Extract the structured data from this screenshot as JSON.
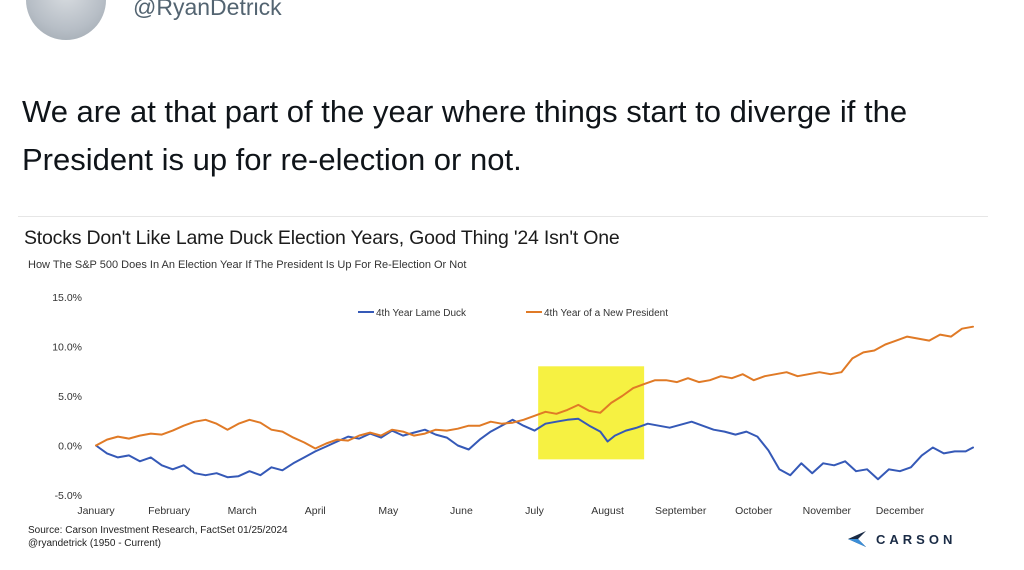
{
  "tweet": {
    "handle": "@RyanDetrick",
    "text": "We are at that part of the year where things start to diverge if the President is up for re-election or not."
  },
  "chart_data": {
    "type": "line",
    "title": "Stocks Don't Like Lame Duck Election Years, Good Thing '24 Isn't One",
    "subtitle": "How The S&P 500 Does In An Election Year If The President Is Up For Re-Election Or Not",
    "xlabel": "",
    "ylabel": "",
    "y_ticks": [
      "15.0%",
      "10.0%",
      "5.0%",
      "0.0%",
      "-5.0%"
    ],
    "ylim": [
      -5,
      15
    ],
    "xlim": [
      0,
      12
    ],
    "x_ticks": [
      {
        "label": "January",
        "pos": 0
      },
      {
        "label": "February",
        "pos": 1
      },
      {
        "label": "March",
        "pos": 2
      },
      {
        "label": "April",
        "pos": 3
      },
      {
        "label": "May",
        "pos": 4
      },
      {
        "label": "June",
        "pos": 5
      },
      {
        "label": "July",
        "pos": 6
      },
      {
        "label": "August",
        "pos": 7
      },
      {
        "label": "September",
        "pos": 8
      },
      {
        "label": "October",
        "pos": 9
      },
      {
        "label": "November",
        "pos": 10
      },
      {
        "label": "December",
        "pos": 11
      }
    ],
    "legend_position": "top",
    "highlight": {
      "x_start": 6.05,
      "x_end": 7.5,
      "y_start": -1.4,
      "y_end": 8.0,
      "color": "#f5ef2e"
    },
    "series": [
      {
        "name": "4th Year Lame Duck",
        "color": "#3559b7",
        "points": [
          [
            0,
            0
          ],
          [
            0.15,
            -0.8
          ],
          [
            0.3,
            -1.2
          ],
          [
            0.45,
            -1.0
          ],
          [
            0.6,
            -1.6
          ],
          [
            0.75,
            -1.2
          ],
          [
            0.9,
            -2.0
          ],
          [
            1.05,
            -2.4
          ],
          [
            1.2,
            -2.0
          ],
          [
            1.35,
            -2.8
          ],
          [
            1.5,
            -3.0
          ],
          [
            1.65,
            -2.8
          ],
          [
            1.8,
            -3.2
          ],
          [
            1.95,
            -3.1
          ],
          [
            2.1,
            -2.6
          ],
          [
            2.25,
            -3.0
          ],
          [
            2.4,
            -2.2
          ],
          [
            2.55,
            -2.5
          ],
          [
            2.7,
            -1.8
          ],
          [
            2.85,
            -1.2
          ],
          [
            3.0,
            -0.6
          ],
          [
            3.15,
            -0.1
          ],
          [
            3.3,
            0.4
          ],
          [
            3.45,
            0.9
          ],
          [
            3.6,
            0.7
          ],
          [
            3.75,
            1.2
          ],
          [
            3.9,
            0.8
          ],
          [
            4.05,
            1.5
          ],
          [
            4.2,
            1.0
          ],
          [
            4.35,
            1.3
          ],
          [
            4.5,
            1.6
          ],
          [
            4.65,
            1.1
          ],
          [
            4.8,
            0.8
          ],
          [
            4.95,
            0.0
          ],
          [
            5.1,
            -0.4
          ],
          [
            5.25,
            0.6
          ],
          [
            5.4,
            1.4
          ],
          [
            5.55,
            2.0
          ],
          [
            5.7,
            2.6
          ],
          [
            5.85,
            2.0
          ],
          [
            6.0,
            1.5
          ],
          [
            6.15,
            2.2
          ],
          [
            6.3,
            2.4
          ],
          [
            6.45,
            2.6
          ],
          [
            6.6,
            2.7
          ],
          [
            6.75,
            2.0
          ],
          [
            6.9,
            1.4
          ],
          [
            7.0,
            0.4
          ],
          [
            7.1,
            1.0
          ],
          [
            7.25,
            1.5
          ],
          [
            7.4,
            1.8
          ],
          [
            7.55,
            2.2
          ],
          [
            7.7,
            2.0
          ],
          [
            7.85,
            1.8
          ],
          [
            8.0,
            2.1
          ],
          [
            8.15,
            2.4
          ],
          [
            8.3,
            2.0
          ],
          [
            8.45,
            1.6
          ],
          [
            8.6,
            1.4
          ],
          [
            8.75,
            1.1
          ],
          [
            8.9,
            1.4
          ],
          [
            9.05,
            0.9
          ],
          [
            9.2,
            -0.5
          ],
          [
            9.35,
            -2.4
          ],
          [
            9.5,
            -3.0
          ],
          [
            9.65,
            -1.8
          ],
          [
            9.8,
            -2.8
          ],
          [
            9.95,
            -1.8
          ],
          [
            10.1,
            -2.0
          ],
          [
            10.25,
            -1.6
          ],
          [
            10.4,
            -2.6
          ],
          [
            10.55,
            -2.4
          ],
          [
            10.7,
            -3.4
          ],
          [
            10.85,
            -2.4
          ],
          [
            11.0,
            -2.6
          ],
          [
            11.15,
            -2.2
          ],
          [
            11.3,
            -1.0
          ],
          [
            11.45,
            -0.2
          ],
          [
            11.6,
            -0.8
          ],
          [
            11.75,
            -0.6
          ],
          [
            11.9,
            -0.6
          ],
          [
            12.0,
            -0.2
          ]
        ]
      },
      {
        "name": "4th Year of a New President",
        "color": "#e07a26",
        "points": [
          [
            0,
            0
          ],
          [
            0.15,
            0.6
          ],
          [
            0.3,
            0.9
          ],
          [
            0.45,
            0.7
          ],
          [
            0.6,
            1.0
          ],
          [
            0.75,
            1.2
          ],
          [
            0.9,
            1.1
          ],
          [
            1.05,
            1.5
          ],
          [
            1.2,
            2.0
          ],
          [
            1.35,
            2.4
          ],
          [
            1.5,
            2.6
          ],
          [
            1.65,
            2.2
          ],
          [
            1.8,
            1.6
          ],
          [
            1.95,
            2.2
          ],
          [
            2.1,
            2.6
          ],
          [
            2.25,
            2.3
          ],
          [
            2.4,
            1.6
          ],
          [
            2.55,
            1.4
          ],
          [
            2.7,
            0.8
          ],
          [
            2.85,
            0.3
          ],
          [
            3.0,
            -0.3
          ],
          [
            3.15,
            0.2
          ],
          [
            3.3,
            0.6
          ],
          [
            3.45,
            0.5
          ],
          [
            3.6,
            1.0
          ],
          [
            3.75,
            1.3
          ],
          [
            3.9,
            1.0
          ],
          [
            4.05,
            1.6
          ],
          [
            4.2,
            1.4
          ],
          [
            4.35,
            1.0
          ],
          [
            4.5,
            1.2
          ],
          [
            4.65,
            1.6
          ],
          [
            4.8,
            1.5
          ],
          [
            4.95,
            1.7
          ],
          [
            5.1,
            2.0
          ],
          [
            5.25,
            2.0
          ],
          [
            5.4,
            2.4
          ],
          [
            5.55,
            2.2
          ],
          [
            5.7,
            2.3
          ],
          [
            5.85,
            2.6
          ],
          [
            6.0,
            3.0
          ],
          [
            6.15,
            3.4
          ],
          [
            6.3,
            3.2
          ],
          [
            6.45,
            3.6
          ],
          [
            6.6,
            4.1
          ],
          [
            6.75,
            3.5
          ],
          [
            6.9,
            3.3
          ],
          [
            7.05,
            4.3
          ],
          [
            7.2,
            5.0
          ],
          [
            7.35,
            5.8
          ],
          [
            7.5,
            6.2
          ],
          [
            7.65,
            6.6
          ],
          [
            7.8,
            6.6
          ],
          [
            7.95,
            6.4
          ],
          [
            8.1,
            6.8
          ],
          [
            8.25,
            6.4
          ],
          [
            8.4,
            6.6
          ],
          [
            8.55,
            7.0
          ],
          [
            8.7,
            6.8
          ],
          [
            8.85,
            7.2
          ],
          [
            9.0,
            6.6
          ],
          [
            9.15,
            7.0
          ],
          [
            9.3,
            7.2
          ],
          [
            9.45,
            7.4
          ],
          [
            9.6,
            7.0
          ],
          [
            9.75,
            7.2
          ],
          [
            9.9,
            7.4
          ],
          [
            10.05,
            7.2
          ],
          [
            10.2,
            7.4
          ],
          [
            10.35,
            8.8
          ],
          [
            10.5,
            9.4
          ],
          [
            10.65,
            9.6
          ],
          [
            10.8,
            10.2
          ],
          [
            10.95,
            10.6
          ],
          [
            11.1,
            11.0
          ],
          [
            11.25,
            10.8
          ],
          [
            11.4,
            10.6
          ],
          [
            11.55,
            11.2
          ],
          [
            11.7,
            11.0
          ],
          [
            11.85,
            11.8
          ],
          [
            12.0,
            12.0
          ]
        ]
      }
    ]
  },
  "source": {
    "line1": "Source: Carson Investment Research, FactSet 01/25/2024",
    "line2": "@ryandetrick    (1950 - Current)"
  },
  "logo": {
    "text": "CARSON"
  },
  "colors": {
    "handle": "#536471",
    "logo_mark": "#1a2b45"
  }
}
